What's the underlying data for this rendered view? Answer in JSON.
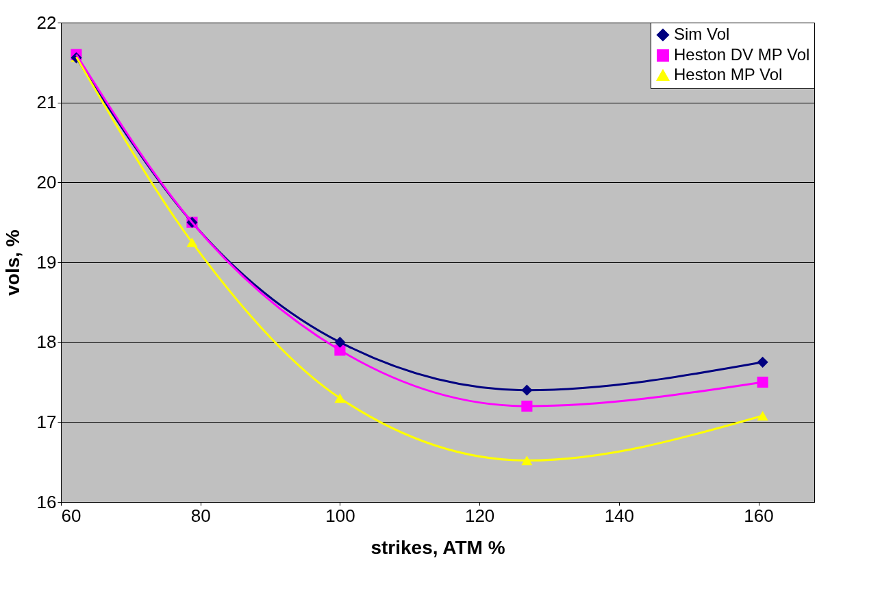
{
  "chart_data": {
    "type": "line",
    "xlabel": "strikes, ATM %",
    "ylabel": "vols, %",
    "x": [
      62.2,
      78.8,
      100,
      126.8,
      160.6
    ],
    "series": [
      {
        "name": "Sim Vol",
        "color": "#000080",
        "marker": "diamond",
        "values": [
          21.56,
          19.5,
          18.0,
          17.4,
          17.75
        ]
      },
      {
        "name": "Heston DV MP Vol",
        "color": "#ff00ff",
        "marker": "square",
        "values": [
          21.6,
          19.5,
          17.9,
          17.2,
          17.5
        ]
      },
      {
        "name": "Heston MP Vol",
        "color": "#ffff00",
        "marker": "triangle",
        "values": [
          21.57,
          19.25,
          17.3,
          16.52,
          17.08
        ]
      }
    ],
    "xlim": [
      60,
      168
    ],
    "xticks": [
      60,
      80,
      100,
      120,
      140,
      160
    ],
    "ylim": [
      16,
      22
    ],
    "yticks": [
      16,
      17,
      18,
      19,
      20,
      21,
      22
    ],
    "grid": "y",
    "legend": "top right",
    "line_style": "solid"
  }
}
